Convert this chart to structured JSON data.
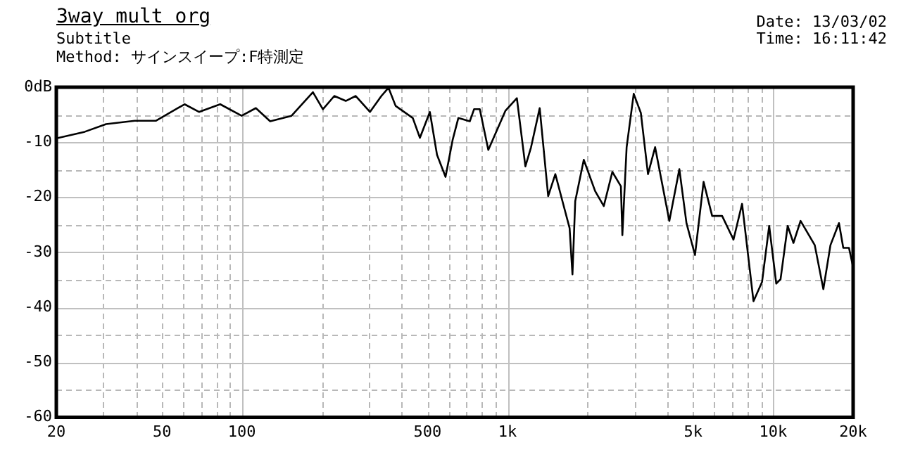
{
  "chart_data": {
    "type": "line",
    "title": "3way mult org",
    "subtitle": "Subtitle",
    "annotations": [
      "Method: サインスイープ:F特測定",
      "Date: 13/03/02",
      "Time: 16:11:42"
    ],
    "x": [
      20,
      25.6,
      30.8,
      39.5,
      47.5,
      60.8,
      68.9,
      82.8,
      99.7,
      112.8,
      127.7,
      153.7,
      185,
      201.7,
      222.7,
      245.9,
      268.1,
      303.3,
      334.9,
      356.2,
      378.9,
      439.7,
      467.7,
      509.8,
      542.5,
      584,
      621,
      652.6,
      720.8,
      747.9,
      786,
      846.2,
      981,
      1084,
      1167,
      1226,
      1321,
      1422,
      1513,
      1609,
      1712,
      1755,
      1798,
      1936,
      2137,
      2303,
      2480,
      2671,
      2705,
      2807,
      2985,
      3176,
      3378,
      3593,
      4065,
      4434,
      4716,
      5078,
      5470,
      5892,
      6424,
      7089,
      7637,
      8430,
      9080,
      9660,
      10270,
      10660,
      11340,
      11920,
      12680,
      14340,
      15450,
      16430,
      17690,
      18360,
      19290,
      20000
    ],
    "series": [
      {
        "color": "#000000",
        "values": [
          -9.3,
          -8.1,
          -6.7,
          -6.1,
          -6.1,
          -3.1,
          -4.5,
          -3.1,
          -5.2,
          -3.8,
          -6.2,
          -5.2,
          -0.9,
          -4,
          -1.6,
          -2.5,
          -1.6,
          -4.5,
          -1.6,
          -0.1,
          -3.4,
          -5.6,
          -9.2,
          -4.5,
          -12.3,
          -16.3,
          -9.6,
          -5.6,
          -6.2,
          -4,
          -4,
          -11.4,
          -4.3,
          -2,
          -14.4,
          -10.9,
          -3.8,
          -19.8,
          -15.8,
          -20.7,
          -25.6,
          -34,
          -20.7,
          -13.2,
          -18.9,
          -21.6,
          -15.4,
          -18,
          -26.9,
          -10.9,
          -1.2,
          -4.7,
          -15.8,
          -10.9,
          -24.3,
          -14.9,
          -24.7,
          -30.5,
          -17.2,
          -23.4,
          -23.4,
          -27.7,
          -21.2,
          -38.9,
          -35.4,
          -25.2,
          -35.7,
          -34.9,
          -25.2,
          -28.3,
          -24.3,
          -28.7,
          -36.7,
          -28.7,
          -24.7,
          -29.2,
          -29.2,
          -32.7
        ]
      }
    ],
    "log": "x",
    "xlim": [
      20,
      20000
    ],
    "xticks": [
      20,
      {
        "value": 30,
        "label": null
      },
      {
        "value": 40,
        "label": null
      },
      50,
      {
        "value": 60,
        "label": null
      },
      {
        "value": 70,
        "label": null
      },
      {
        "value": 80,
        "label": null
      },
      {
        "value": 90,
        "label": null
      },
      100,
      {
        "value": 200,
        "label": null
      },
      {
        "value": 300,
        "label": null
      },
      {
        "value": 400,
        "label": null
      },
      500,
      {
        "value": 600,
        "label": null
      },
      {
        "value": 700,
        "label": null
      },
      {
        "value": 800,
        "label": null
      },
      {
        "value": 900,
        "label": null
      },
      {
        "value": 1000,
        "label": "1k"
      },
      {
        "value": 2000,
        "label": null
      },
      {
        "value": 3000,
        "label": null
      },
      {
        "value": 4000,
        "label": null
      },
      {
        "value": 5000,
        "label": "5k"
      },
      {
        "value": 6000,
        "label": null
      },
      {
        "value": 7000,
        "label": null
      },
      {
        "value": 8000,
        "label": null
      },
      {
        "value": 9000,
        "label": null
      },
      {
        "value": 10000,
        "label": "10k"
      },
      {
        "value": 20000,
        "label": "20k"
      }
    ],
    "ylim": [
      -60,
      0
    ],
    "yticks": [
      {
        "value": 0,
        "label": "0dB"
      },
      {
        "value": -5,
        "label": null
      },
      -10,
      {
        "value": -15,
        "label": null
      },
      -20,
      {
        "value": -25,
        "label": null
      },
      -30,
      {
        "value": -35,
        "label": null
      },
      -40,
      {
        "value": -45,
        "label": null
      },
      -50,
      {
        "value": -55,
        "label": null
      },
      -60
    ],
    "grid": true,
    "legend": false,
    "marker": "none",
    "line_style": "solid"
  }
}
